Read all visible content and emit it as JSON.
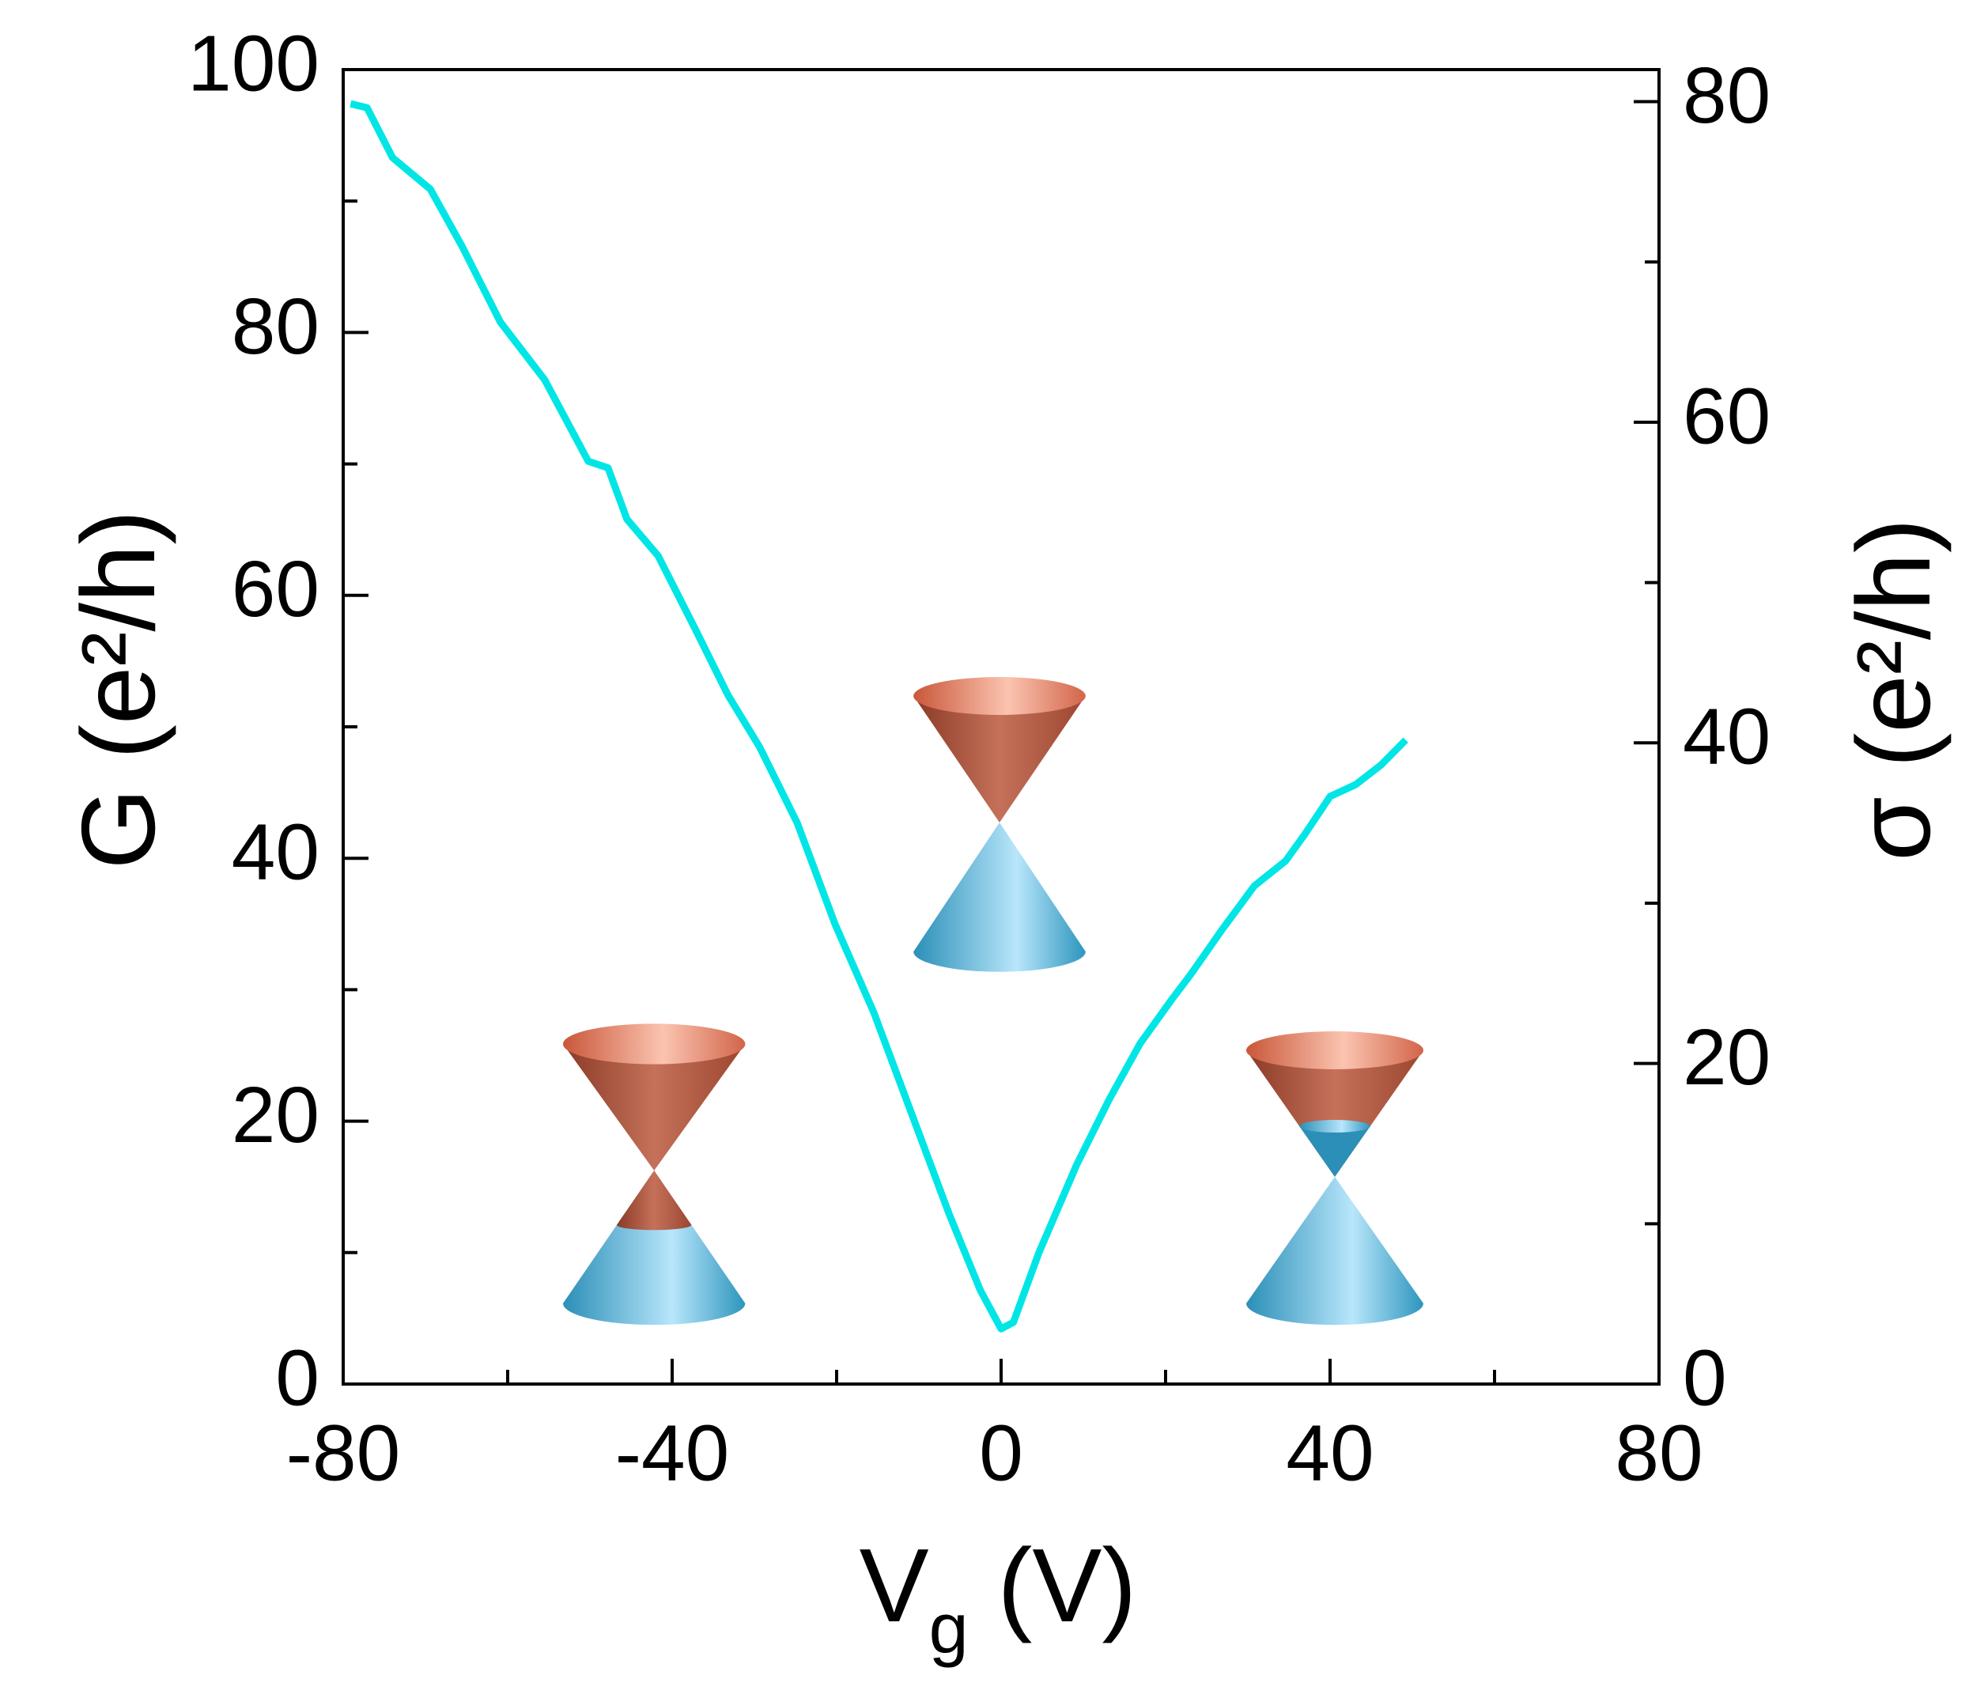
{
  "chart_data": {
    "type": "line",
    "x_label": [
      "V",
      "g",
      " (V)"
    ],
    "y_label": "G (e²/h)",
    "y2_label": "σ (e²/h)",
    "x": [
      -79.1,
      -77.1,
      -74,
      -69.4,
      -65.5,
      -60.9,
      -55.5,
      -50.2,
      -47.8,
      -45.5,
      -41.7,
      -37,
      -33.2,
      -29.4,
      -24.8,
      -20.2,
      -15.5,
      -10.9,
      -6.3,
      -2.5,
      0,
      1.5,
      4.6,
      9.2,
      13.1,
      16.9,
      20.8,
      23.1,
      26.9,
      30.8,
      34.6,
      36.9,
      40,
      43.1,
      46.2,
      49.2
    ],
    "series": [
      {
        "color": "#00e5e5",
        "values": [
          97.4,
          97.1,
          93.3,
          90.9,
          86.5,
          80.8,
          76.4,
          70.2,
          69.7,
          65.8,
          63,
          57.2,
          52.4,
          48.5,
          42.7,
          35,
          28.3,
          20.6,
          12.9,
          7.1,
          4.2,
          4.7,
          10,
          16.7,
          21.6,
          25.9,
          29.3,
          31.2,
          34.6,
          37.9,
          39.8,
          41.8,
          44.7,
          45.6,
          47.1,
          49
        ]
      }
    ],
    "xlim": [
      -80,
      80
    ],
    "xticks": [
      -80,
      -40,
      0,
      40,
      80
    ],
    "xminor": [
      -60,
      -20,
      20,
      60
    ],
    "ylim": [
      0,
      100
    ],
    "yticks": [
      0,
      20,
      40,
      60,
      80,
      100
    ],
    "yminor": [
      10,
      30,
      50,
      70,
      90
    ],
    "y2lim": [
      0,
      82
    ],
    "y2ticks": [
      0,
      20,
      40,
      60,
      80
    ],
    "y2minor": [
      10,
      30,
      50,
      70
    ]
  }
}
